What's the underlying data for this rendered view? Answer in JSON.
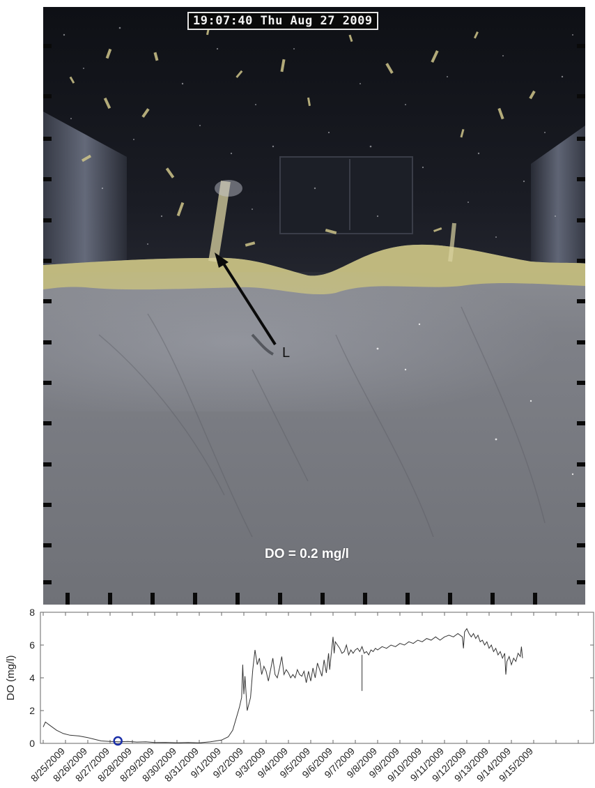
{
  "photo": {
    "timestamp": "19:07:40 Thu Aug 27 2009",
    "arrow_label": "L",
    "do_caption": "DO = 0.2 mg/l"
  },
  "chart_data": {
    "type": "line",
    "title": "",
    "xlabel": "",
    "ylabel": "DO (mg/l)",
    "ylim": [
      0,
      8
    ],
    "yticks": [
      0,
      2,
      4,
      6,
      8
    ],
    "xlim": [
      0,
      23.0
    ],
    "x_tick_labels": [
      "8/25/2009",
      "8/26/2009",
      "8/27/2009",
      "8/28/2009",
      "8/29/2009",
      "8/30/2009",
      "8/31/2009",
      "9/1/2009",
      "9/2/2009",
      "9/3/2009",
      "9/4/2009",
      "9/5/2009",
      "9/6/2009",
      "9/7/2009",
      "9/8/2009",
      "9/9/2009",
      "9/10/2009",
      "9/11/2009",
      "9/12/2009",
      "9/13/2009",
      "9/14/2009",
      "9/15/2009"
    ],
    "grid": false,
    "series": [
      {
        "color": "#333333",
        "points": [
          [
            0.0,
            1.0
          ],
          [
            0.1,
            1.3
          ],
          [
            0.3,
            1.1
          ],
          [
            0.6,
            0.8
          ],
          [
            0.9,
            0.6
          ],
          [
            1.2,
            0.5
          ],
          [
            1.6,
            0.45
          ],
          [
            2.0,
            0.35
          ],
          [
            2.3,
            0.25
          ],
          [
            2.6,
            0.15
          ],
          [
            3.0,
            0.12
          ],
          [
            3.4,
            0.1
          ],
          [
            3.8,
            0.12
          ],
          [
            4.2,
            0.08
          ],
          [
            4.6,
            0.1
          ],
          [
            5.0,
            0.05
          ],
          [
            5.5,
            0.06
          ],
          [
            6.0,
            0.04
          ],
          [
            6.5,
            0.05
          ],
          [
            7.0,
            0.03
          ],
          [
            7.5,
            0.1
          ],
          [
            8.0,
            0.2
          ],
          [
            8.3,
            0.4
          ],
          [
            8.5,
            0.8
          ],
          [
            8.65,
            1.5
          ],
          [
            8.8,
            2.2
          ],
          [
            8.9,
            2.8
          ],
          [
            8.95,
            4.8
          ],
          [
            9.0,
            3.0
          ],
          [
            9.05,
            4.1
          ],
          [
            9.15,
            2.0
          ],
          [
            9.3,
            2.8
          ],
          [
            9.4,
            4.5
          ],
          [
            9.5,
            5.7
          ],
          [
            9.6,
            4.8
          ],
          [
            9.7,
            5.2
          ],
          [
            9.8,
            4.2
          ],
          [
            9.9,
            4.7
          ],
          [
            10.0,
            4.4
          ],
          [
            10.1,
            3.8
          ],
          [
            10.2,
            4.5
          ],
          [
            10.3,
            5.2
          ],
          [
            10.4,
            4.2
          ],
          [
            10.5,
            4.0
          ],
          [
            10.6,
            4.6
          ],
          [
            10.7,
            5.3
          ],
          [
            10.8,
            4.2
          ],
          [
            10.9,
            4.5
          ],
          [
            11.0,
            4.3
          ],
          [
            11.1,
            4.0
          ],
          [
            11.2,
            4.2
          ],
          [
            11.3,
            4.0
          ],
          [
            11.4,
            4.5
          ],
          [
            11.5,
            4.2
          ],
          [
            11.6,
            4.1
          ],
          [
            11.7,
            4.4
          ],
          [
            11.8,
            3.7
          ],
          [
            11.9,
            4.4
          ],
          [
            12.0,
            3.8
          ],
          [
            12.1,
            4.6
          ],
          [
            12.2,
            4.0
          ],
          [
            12.3,
            4.9
          ],
          [
            12.4,
            4.5
          ],
          [
            12.5,
            4.1
          ],
          [
            12.6,
            5.1
          ],
          [
            12.7,
            4.3
          ],
          [
            12.8,
            5.5
          ],
          [
            12.85,
            4.5
          ],
          [
            12.9,
            5.2
          ],
          [
            13.0,
            6.5
          ],
          [
            13.05,
            5.5
          ],
          [
            13.1,
            6.2
          ],
          [
            13.2,
            6.0
          ],
          [
            13.3,
            5.8
          ],
          [
            13.4,
            5.5
          ],
          [
            13.5,
            5.6
          ],
          [
            13.6,
            6.0
          ],
          [
            13.7,
            5.4
          ],
          [
            13.8,
            5.7
          ],
          [
            13.9,
            5.5
          ],
          [
            14.0,
            5.7
          ],
          [
            14.1,
            5.8
          ],
          [
            14.2,
            5.6
          ],
          [
            14.3,
            5.9
          ],
          [
            14.4,
            5.5
          ],
          [
            14.5,
            5.6
          ],
          [
            14.6,
            5.4
          ],
          [
            14.7,
            5.7
          ],
          [
            14.8,
            5.6
          ],
          [
            14.9,
            5.8
          ],
          [
            15.0,
            5.7
          ],
          [
            15.2,
            5.9
          ],
          [
            15.4,
            5.8
          ],
          [
            15.6,
            6.0
          ],
          [
            15.8,
            5.9
          ],
          [
            16.0,
            6.1
          ],
          [
            16.2,
            6.0
          ],
          [
            16.4,
            6.2
          ],
          [
            16.6,
            6.1
          ],
          [
            16.8,
            6.3
          ],
          [
            17.0,
            6.2
          ],
          [
            17.2,
            6.4
          ],
          [
            17.4,
            6.3
          ],
          [
            17.6,
            6.5
          ],
          [
            17.8,
            6.3
          ],
          [
            18.0,
            6.5
          ],
          [
            18.2,
            6.6
          ],
          [
            18.4,
            6.5
          ],
          [
            18.6,
            6.7
          ],
          [
            18.8,
            6.5
          ],
          [
            18.85,
            5.8
          ],
          [
            18.9,
            6.8
          ],
          [
            19.0,
            7.0
          ],
          [
            19.1,
            6.7
          ],
          [
            19.2,
            6.5
          ],
          [
            19.3,
            6.7
          ],
          [
            19.4,
            6.4
          ],
          [
            19.5,
            6.6
          ],
          [
            19.6,
            6.2
          ],
          [
            19.7,
            6.3
          ],
          [
            19.8,
            6.0
          ],
          [
            19.9,
            6.2
          ],
          [
            20.0,
            5.8
          ],
          [
            20.1,
            6.0
          ],
          [
            20.2,
            5.6
          ],
          [
            20.3,
            5.8
          ],
          [
            20.4,
            5.4
          ],
          [
            20.5,
            5.6
          ],
          [
            20.6,
            5.2
          ],
          [
            20.7,
            5.5
          ],
          [
            20.75,
            4.2
          ],
          [
            20.8,
            5.0
          ],
          [
            20.9,
            5.3
          ],
          [
            21.0,
            4.8
          ],
          [
            21.1,
            5.2
          ],
          [
            21.2,
            5.0
          ],
          [
            21.3,
            5.5
          ],
          [
            21.4,
            5.3
          ],
          [
            21.45,
            5.9
          ],
          [
            21.5,
            5.2
          ]
        ],
        "gap_segments": [
          [
            [
              14.3,
              5.4
            ],
            [
              14.3,
              3.2
            ]
          ]
        ]
      }
    ],
    "marker": {
      "x": 3.35,
      "y": 0.15,
      "color": "#1a2ea8"
    }
  }
}
